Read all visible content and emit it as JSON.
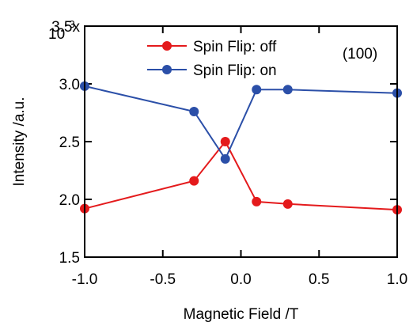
{
  "chart_data": {
    "type": "line",
    "title": "",
    "xlabel": "Magnetic Field /T",
    "ylabel": "Intensity /a.u.",
    "xlim": [
      -1.0,
      1.0
    ],
    "ylim": [
      1.5,
      3.5
    ],
    "y_scale_multiplier": "10",
    "y_scale_exponent": "-3",
    "x_ticks": [
      -1.0,
      -0.5,
      0.0,
      0.5,
      1.0
    ],
    "x_tick_labels": [
      "-1.0",
      "-0.5",
      "0.0",
      "0.5",
      "1.0"
    ],
    "y_ticks": [
      1.5,
      2.0,
      2.5,
      3.0,
      3.5
    ],
    "y_tick_labels": [
      "1.5",
      "2.0",
      "2.5",
      "3.0",
      "3.5x"
    ],
    "annotation": "(100)",
    "grid": false,
    "legend_position": "top-center",
    "series": [
      {
        "name": "Spin Flip: off",
        "color": "#e41a1c",
        "x": [
          -1.0,
          -0.3,
          -0.1,
          0.1,
          0.3,
          1.0
        ],
        "y": [
          1.92,
          2.16,
          2.5,
          1.98,
          1.96,
          1.91
        ]
      },
      {
        "name": "Spin Flip: on",
        "color": "#2b4fa8",
        "x": [
          -1.0,
          -0.3,
          -0.1,
          0.1,
          0.3,
          1.0
        ],
        "y": [
          2.98,
          2.76,
          2.35,
          2.95,
          2.95,
          2.92
        ]
      }
    ]
  }
}
